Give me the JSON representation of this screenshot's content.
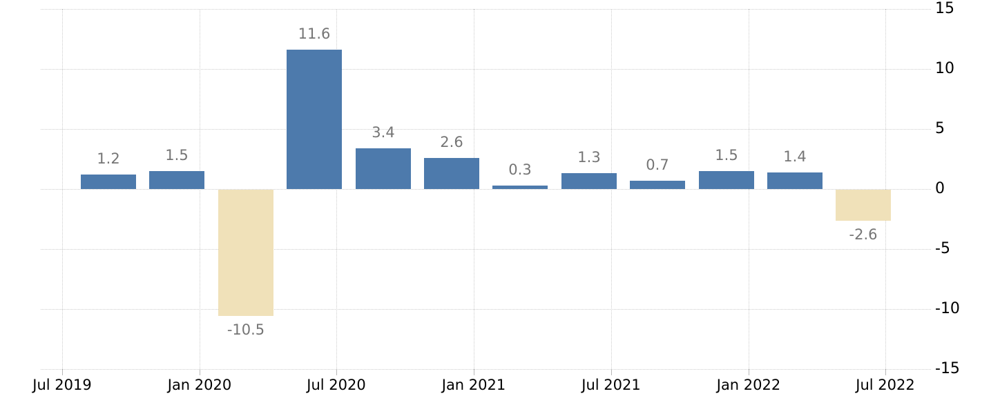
{
  "chart_data": {
    "type": "bar",
    "title": "",
    "xlabel": "",
    "ylabel": "",
    "values": [
      1.2,
      1.5,
      -10.5,
      11.6,
      3.4,
      2.6,
      0.3,
      1.3,
      0.7,
      1.5,
      1.4,
      -2.6
    ],
    "bar_value_labels": [
      "1.2",
      "1.5",
      "-10.5",
      "11.6",
      "3.4",
      "2.6",
      "0.3",
      "1.3",
      "0.7",
      "1.5",
      "1.4",
      "-2.6"
    ],
    "x_tick_labels": [
      "Jul 2019",
      "Jan 2020",
      "Jul 2020",
      "Jan 2021",
      "Jul 2021",
      "Jan 2022",
      "Jul 2022"
    ],
    "y_tick_labels": [
      "15",
      "10",
      "5",
      "0",
      "-5",
      "-10",
      "-15"
    ],
    "y_ticks": [
      15,
      10,
      5,
      0,
      -5,
      -10,
      -15
    ],
    "ylim": [
      -15,
      15
    ],
    "bars_per_x_interval": 2,
    "grid": "dotted",
    "legend_position": "none",
    "colors": {
      "positive_bar": "#4d7aac",
      "negative_bar": "#f0e1b9",
      "gridline": "#cccccc",
      "value_label": "#757575",
      "axis_label": "#000000",
      "background": "#ffffff"
    }
  }
}
